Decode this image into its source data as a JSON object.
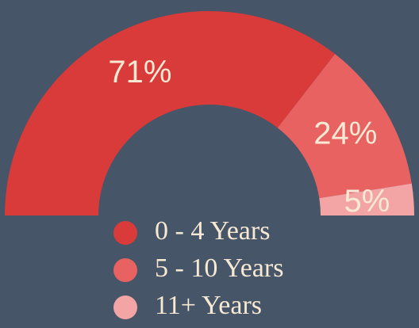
{
  "chart_data": {
    "type": "pie",
    "half": true,
    "donut": true,
    "categories": [
      "0 - 4 Years",
      "5 - 10 Years",
      "11+ Years"
    ],
    "values": [
      71,
      24,
      5
    ],
    "value_labels": [
      "71%",
      "24%",
      "5%"
    ],
    "colors": [
      "#d93a3a",
      "#e86262",
      "#f3a4a4"
    ],
    "legend": "bottom"
  }
}
